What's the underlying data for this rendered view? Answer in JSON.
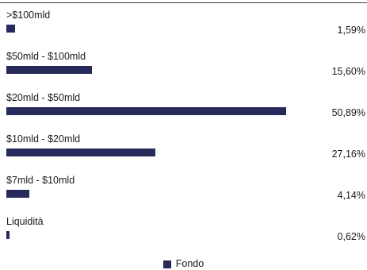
{
  "chart_data": {
    "type": "bar",
    "orientation": "horizontal",
    "categories": [
      ">$100mld",
      "$50mld - $100mld",
      "$20mld - $50mld",
      "$10mld - $20mld",
      "$7mld - $10mld",
      "Liquidità"
    ],
    "series": [
      {
        "name": "Fondo",
        "values": [
          1.59,
          15.6,
          50.89,
          27.16,
          4.14,
          0.62
        ],
        "labels": [
          "1,59%",
          "15,60%",
          "50,89%",
          "27,16%",
          "4,14%",
          "0,62%"
        ]
      }
    ],
    "xlim": [
      0,
      50.89
    ],
    "grid": false,
    "legend_position": "bottom-center",
    "colors": {
      "bar": "#26295a"
    }
  }
}
